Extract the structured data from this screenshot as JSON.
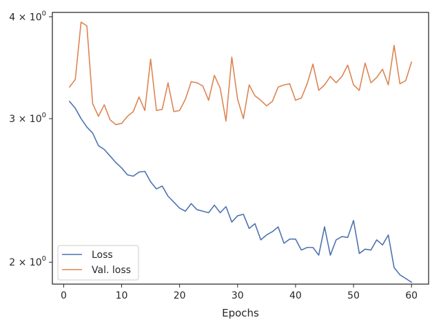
{
  "chart_data": {
    "type": "line",
    "title": "",
    "xlabel": "Epochs",
    "ylabel": "",
    "y_scale": "log",
    "xlim": [
      -1.95,
      62.95
    ],
    "ylim": [
      1.88,
      4.05
    ],
    "x_ticks": [
      0,
      10,
      20,
      30,
      40,
      50,
      60
    ],
    "y_ticks": [
      {
        "value": 2,
        "base": "2",
        "mult": "×",
        "pow": "10",
        "exp": "0"
      },
      {
        "value": 3,
        "base": "3",
        "mult": "×",
        "pow": "10",
        "exp": "0"
      },
      {
        "value": 4,
        "base": "4",
        "mult": "×",
        "pow": "10",
        "exp": "0"
      }
    ],
    "grid": false,
    "legend": {
      "position": "lower-left"
    },
    "x": [
      1,
      2,
      3,
      4,
      5,
      6,
      7,
      8,
      9,
      10,
      11,
      12,
      13,
      14,
      15,
      16,
      17,
      18,
      19,
      20,
      21,
      22,
      23,
      24,
      25,
      26,
      27,
      28,
      29,
      30,
      31,
      32,
      33,
      34,
      35,
      36,
      37,
      38,
      39,
      40,
      41,
      42,
      43,
      44,
      45,
      46,
      47,
      48,
      49,
      50,
      51,
      52,
      53,
      54,
      55,
      56,
      57,
      58,
      59,
      60
    ],
    "series": [
      {
        "name": "Loss",
        "color": "#4c72b0",
        "values": [
          3.15,
          3.09,
          3.0,
          2.93,
          2.88,
          2.78,
          2.75,
          2.7,
          2.65,
          2.61,
          2.56,
          2.55,
          2.58,
          2.585,
          2.51,
          2.46,
          2.48,
          2.41,
          2.37,
          2.33,
          2.31,
          2.36,
          2.32,
          2.31,
          2.3,
          2.35,
          2.3,
          2.34,
          2.24,
          2.28,
          2.29,
          2.2,
          2.23,
          2.13,
          2.16,
          2.18,
          2.21,
          2.11,
          2.135,
          2.135,
          2.07,
          2.085,
          2.085,
          2.04,
          2.21,
          2.04,
          2.13,
          2.15,
          2.145,
          2.25,
          2.05,
          2.075,
          2.07,
          2.13,
          2.1,
          2.16,
          1.97,
          1.93,
          1.91,
          1.89
        ]
      },
      {
        "name": "Val. loss",
        "color": "#dd8452",
        "values": [
          3.28,
          3.35,
          3.94,
          3.9,
          3.13,
          3.02,
          3.12,
          2.99,
          2.95,
          2.96,
          3.02,
          3.06,
          3.19,
          3.07,
          3.55,
          3.07,
          3.08,
          3.32,
          3.06,
          3.07,
          3.17,
          3.33,
          3.32,
          3.29,
          3.16,
          3.39,
          3.27,
          2.98,
          3.57,
          3.17,
          3.0,
          3.3,
          3.2,
          3.16,
          3.11,
          3.15,
          3.28,
          3.3,
          3.31,
          3.16,
          3.18,
          3.31,
          3.5,
          3.25,
          3.3,
          3.38,
          3.32,
          3.38,
          3.49,
          3.3,
          3.25,
          3.51,
          3.32,
          3.37,
          3.45,
          3.3,
          3.69,
          3.31,
          3.34,
          3.52
        ]
      }
    ]
  }
}
